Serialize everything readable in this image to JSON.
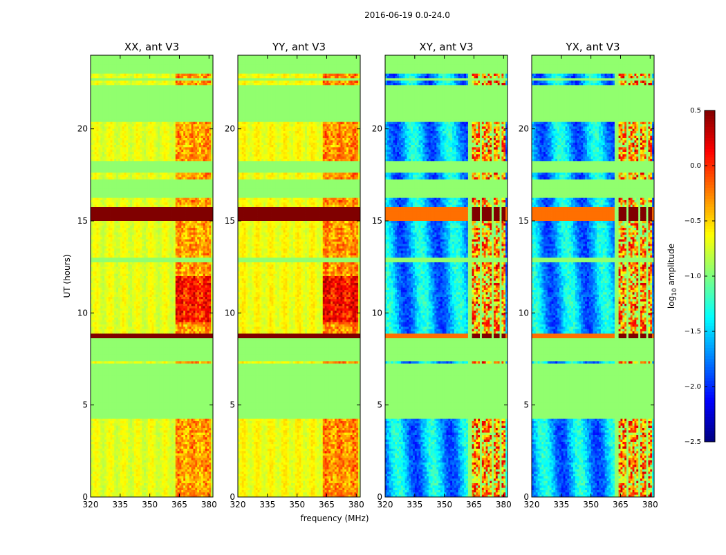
{
  "chart_data": {
    "type": "heatmap",
    "suptitle": "2016-06-19 0.0-24.0",
    "xlabel": "frequency (MHz)",
    "ylabel": "UT (hours)",
    "xlim": [
      320,
      382
    ],
    "ylim": [
      0,
      24
    ],
    "xticks": [
      320,
      335,
      350,
      365,
      380
    ],
    "yticks": [
      0,
      5,
      10,
      15,
      20
    ],
    "panels": [
      {
        "title": "XX, ant V3",
        "kind": "auto",
        "base": -0.7
      },
      {
        "title": "YY, ant V3",
        "kind": "auto",
        "base": -0.65
      },
      {
        "title": "XY, ant V3",
        "kind": "cross",
        "base": -1.6
      },
      {
        "title": "YX, ant V3",
        "kind": "cross",
        "base": -1.6
      }
    ],
    "flagged_value": -0.95,
    "colorbar": {
      "label": "log10 amplitude",
      "label_main": "log",
      "label_sub": "10",
      "label_rest": " amplitude",
      "min": -2.5,
      "max": 0.5,
      "ticks": [
        "0.5",
        "0.0",
        "−0.5",
        "−1.0",
        "−1.5",
        "−2.0",
        "−2.5"
      ],
      "tick_values": [
        0.5,
        0.0,
        -0.5,
        -1.0,
        -1.5,
        -2.0,
        -2.5
      ],
      "colormap": "jet"
    },
    "flagged_ut_ranges": [
      [
        4.2,
        7.3
      ],
      [
        7.35,
        8.6
      ],
      [
        12.8,
        13.0
      ],
      [
        16.2,
        17.2
      ],
      [
        17.6,
        18.2
      ],
      [
        20.4,
        22.4
      ],
      [
        22.6,
        22.8
      ],
      [
        23.05,
        24.0
      ]
    ],
    "flagged_freq_ranges": [
      [
        362.5,
        363.5
      ],
      [
        368.5,
        369.3
      ],
      [
        374.0,
        374.8
      ],
      [
        378.5,
        379.3
      ]
    ],
    "rfi_ut_bands": [
      [
        15.0,
        15.8
      ],
      [
        8.65,
        8.9
      ]
    ],
    "strong_freq_band": [
      363,
      381
    ]
  }
}
